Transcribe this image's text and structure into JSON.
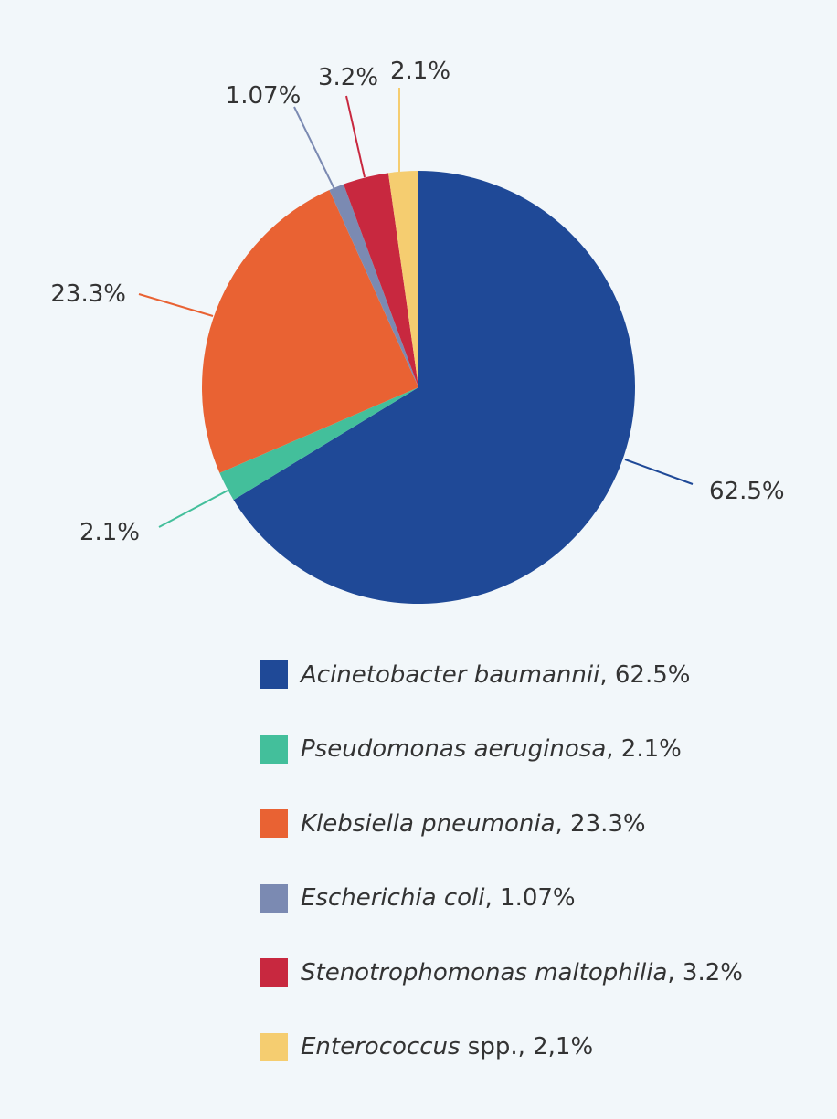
{
  "chart_data": {
    "type": "pie",
    "title": "",
    "slices": [
      {
        "label_parts": [
          {
            "text": "Acinetobacter baumannii",
            "italic": true
          },
          {
            "text": ", 62.5%",
            "italic": false
          }
        ],
        "value": 62.5,
        "value_label": "62.5%",
        "color": "#1f4997"
      },
      {
        "label_parts": [
          {
            "text": "Pseudomonas aeruginosa",
            "italic": true
          },
          {
            "text": ", 2.1%",
            "italic": false
          }
        ],
        "value": 2.1,
        "value_label": "2.1%",
        "color": "#43bf9b"
      },
      {
        "label_parts": [
          {
            "text": "Klebsiella pneumonia",
            "italic": true
          },
          {
            "text": ", 23.3%",
            "italic": false
          }
        ],
        "value": 23.3,
        "value_label": "23.3%",
        "color": "#e96233"
      },
      {
        "label_parts": [
          {
            "text": "Escherichia coli",
            "italic": true
          },
          {
            "text": ", 1.07%",
            "italic": false
          }
        ],
        "value": 1.07,
        "value_label": "1.07%",
        "color": "#7b8ab2"
      },
      {
        "label_parts": [
          {
            "text": "Stenotrophomonas maltophilia",
            "italic": true
          },
          {
            "text": ", 3.2%",
            "italic": false
          }
        ],
        "value": 3.2,
        "value_label": "3.2%",
        "color": "#c8283f"
      },
      {
        "label_parts": [
          {
            "text": "Enterococcus",
            "italic": true
          },
          {
            "text": " spp., 2,1%",
            "italic": false
          }
        ],
        "value": 2.1,
        "value_label": "2.1%",
        "color": "#f5cd70"
      }
    ],
    "start_angle": "12 o'clock",
    "direction": "clockwise",
    "legend_position": "bottom"
  }
}
